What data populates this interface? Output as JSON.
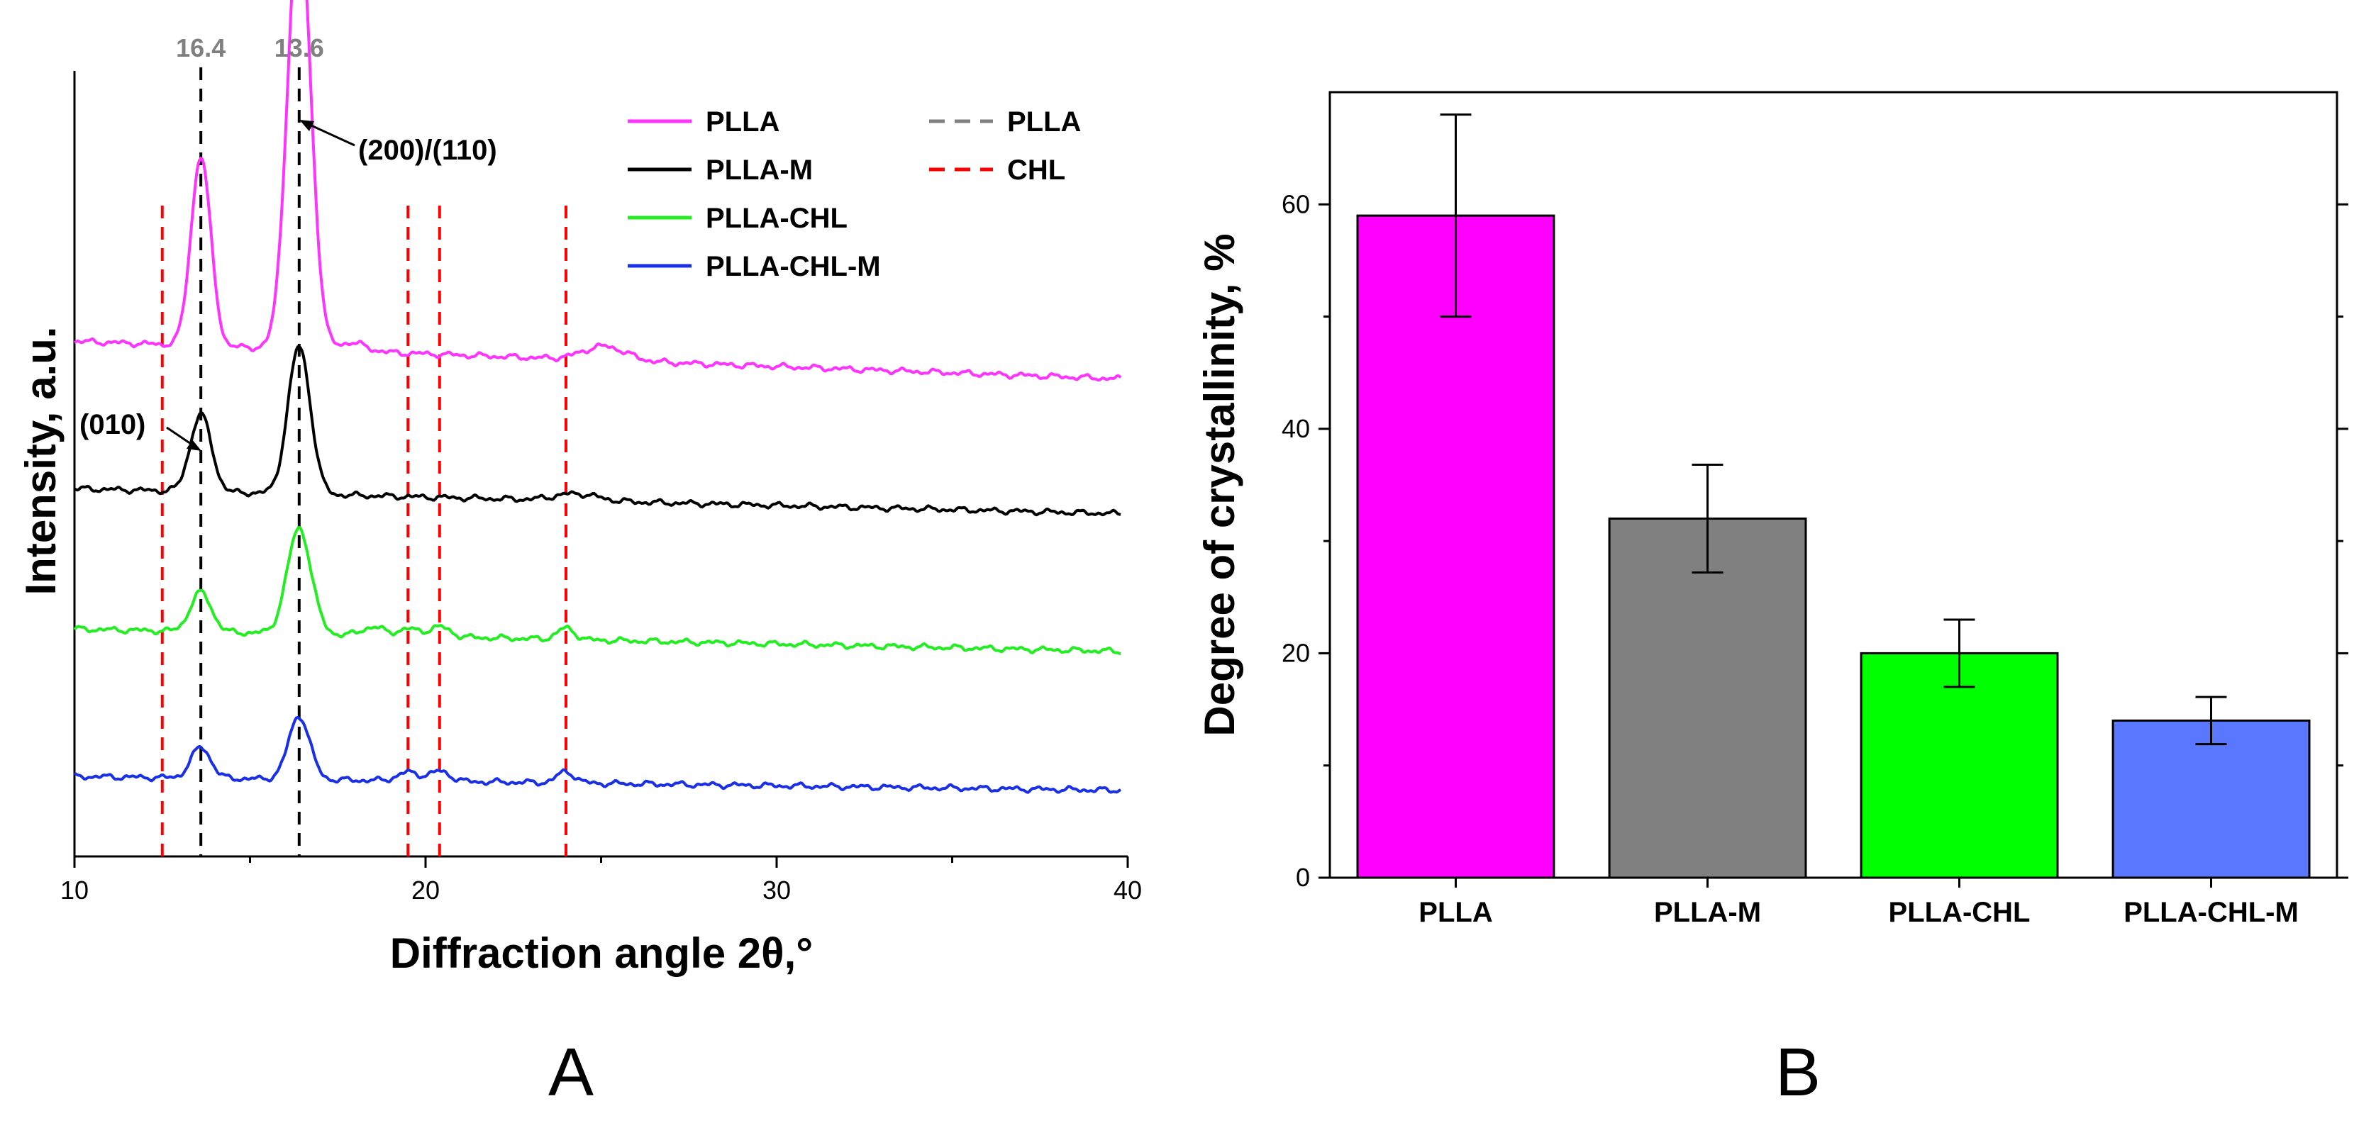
{
  "chart_data": [
    {
      "type": "line",
      "panel_label": "A",
      "xlabel": "Diffraction angle 2θ,°",
      "ylabel": "Intensity, a.u.",
      "xlim": [
        10,
        40
      ],
      "x_ticks": [
        "10",
        "20",
        "30",
        "40"
      ],
      "peak_labels": [
        "16.4",
        "13.6"
      ],
      "peak_positions": [
        13.6,
        16.4
      ],
      "chl_reference_positions": [
        12.5,
        19.5,
        20.4,
        24.0
      ],
      "annotations": [
        "(200)/(110)",
        "(010)"
      ],
      "legend": {
        "placement": "top-right",
        "entries": [
          {
            "label": "PLLA",
            "color": "#ff33ff",
            "style": "solid"
          },
          {
            "label": "PLLA-M",
            "color": "#000000",
            "style": "solid"
          },
          {
            "label": "PLLA-CHL",
            "color": "#22ee22",
            "style": "solid"
          },
          {
            "label": "PLLA-CHL-M",
            "color": "#1a2fe8",
            "style": "solid"
          },
          {
            "label": "PLLA",
            "color": "#808080",
            "style": "dashed"
          },
          {
            "label": "CHL",
            "color": "#ff0000",
            "style": "dashed"
          }
        ]
      },
      "series": [
        {
          "name": "PLLA",
          "color": "#ff33ff",
          "offset": 3.0,
          "baseline": [
            0.15,
            -0.12
          ],
          "peaks": [
            [
              13.6,
              1.35,
              0.28
            ],
            [
              16.4,
              3.1,
              0.33
            ],
            [
              17.9,
              0.06,
              0.4
            ],
            [
              25.1,
              0.1,
              0.6
            ]
          ]
        },
        {
          "name": "PLLA-M",
          "color": "#000000",
          "offset": 2.0,
          "baseline": [
            0.1,
            -0.08
          ],
          "peaks": [
            [
              13.6,
              0.55,
              0.3
            ],
            [
              16.4,
              1.05,
              0.32
            ],
            [
              24.3,
              0.05,
              0.6
            ]
          ]
        },
        {
          "name": "PLLA-CHL",
          "color": "#22ee22",
          "offset": 1.0,
          "baseline": [
            0.1,
            -0.06
          ],
          "peaks": [
            [
              13.6,
              0.28,
              0.3
            ],
            [
              16.4,
              0.75,
              0.34
            ],
            [
              18.5,
              0.06,
              0.3
            ],
            [
              19.5,
              0.05,
              0.3
            ],
            [
              20.4,
              0.07,
              0.3
            ],
            [
              24.0,
              0.08,
              0.25
            ]
          ]
        },
        {
          "name": "PLLA-CHL-M",
          "color": "#1a2fe8",
          "offset": 0.0,
          "baseline": [
            0.05,
            -0.05
          ],
          "peaks": [
            [
              13.6,
              0.22,
              0.28
            ],
            [
              16.4,
              0.45,
              0.3
            ],
            [
              19.5,
              0.06,
              0.3
            ],
            [
              20.4,
              0.07,
              0.3
            ],
            [
              24.0,
              0.08,
              0.25
            ]
          ]
        }
      ]
    },
    {
      "type": "bar",
      "panel_label": "B",
      "ylabel": "Degree of crystallinity, %",
      "ylim": [
        0,
        70
      ],
      "y_ticks": [
        "0",
        "20",
        "40",
        "60"
      ],
      "categories": [
        "PLLA",
        "PLLA-M",
        "PLLA-CHL",
        "PLLA-CHL-M"
      ],
      "values": [
        59,
        32,
        20,
        14
      ],
      "errors": [
        9,
        4.8,
        3,
        2.1
      ],
      "colors": [
        "#ff00ff",
        "#808080",
        "#00ff00",
        "#5a78ff"
      ]
    }
  ]
}
